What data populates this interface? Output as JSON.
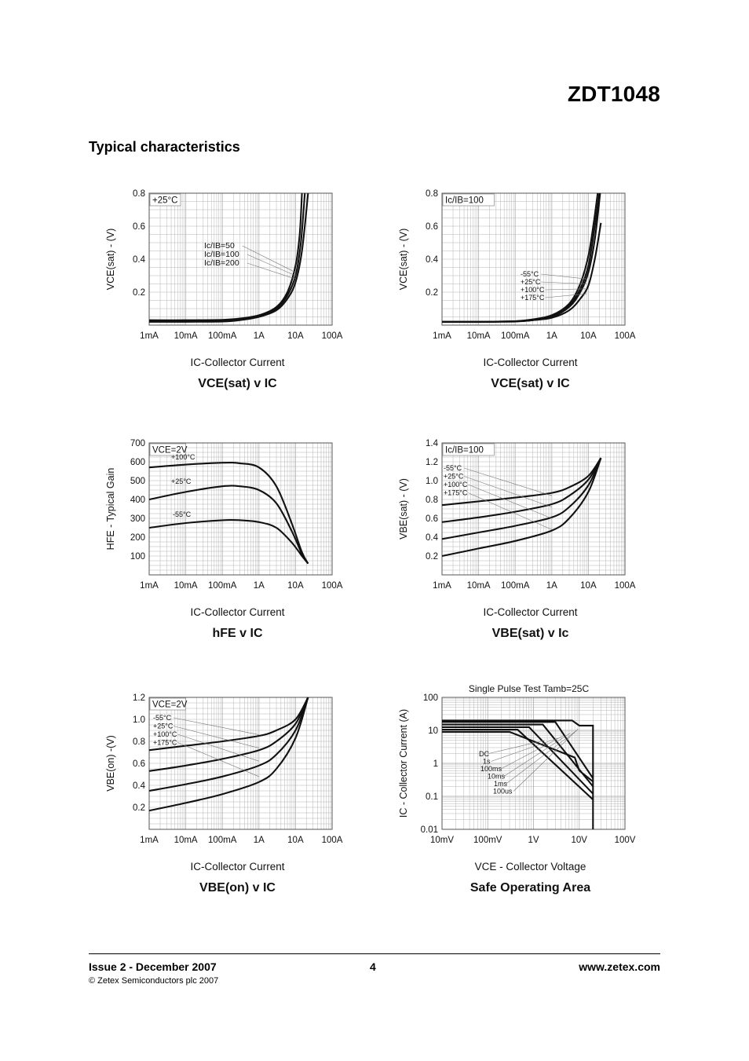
{
  "header": {
    "part_number": "ZDT1048"
  },
  "section_title": "Typical characteristics",
  "footer": {
    "issue": "Issue 2 - December 2007",
    "page": "4",
    "website": "www.zetex.com",
    "copyright": "© Zetex Semiconductors plc 2007"
  },
  "chart_data": [
    {
      "type": "line",
      "title": "VCE(sat) v IC",
      "xlabel": "IC-Collector Current",
      "ylabel": "VCE(sat) - (V)",
      "x_scale": "log",
      "x_range": [
        0.001,
        100
      ],
      "xticks": [
        0.001,
        0.01,
        0.1,
        1,
        10,
        100
      ],
      "xtick_labels": [
        "1mA",
        "10mA",
        "100mA",
        "1A",
        "10A",
        "100A"
      ],
      "y_range": [
        0,
        0.8
      ],
      "yticks": [
        0.2,
        0.4,
        0.6,
        0.8
      ],
      "ytick_labels": [
        "0.2",
        "0.4",
        "0.6",
        "0.8"
      ],
      "condition": "+25°C",
      "legend_labels": [
        "Ic/IB=50",
        "Ic/IB=100",
        "Ic/IB=200"
      ],
      "series": [
        {
          "name": "Ic/IB=50",
          "points": [
            [
              0.001,
              0.03
            ],
            [
              0.01,
              0.03
            ],
            [
              0.1,
              0.032
            ],
            [
              0.3,
              0.04
            ],
            [
              1,
              0.06
            ],
            [
              3,
              0.11
            ],
            [
              6,
              0.2
            ],
            [
              10,
              0.36
            ],
            [
              13,
              0.55
            ],
            [
              15,
              0.8
            ]
          ]
        },
        {
          "name": "Ic/IB=100",
          "points": [
            [
              0.001,
              0.025
            ],
            [
              0.01,
              0.025
            ],
            [
              0.1,
              0.027
            ],
            [
              0.3,
              0.035
            ],
            [
              1,
              0.055
            ],
            [
              3,
              0.1
            ],
            [
              6,
              0.18
            ],
            [
              10,
              0.3
            ],
            [
              14,
              0.5
            ],
            [
              18,
              0.8
            ]
          ]
        },
        {
          "name": "Ic/IB=200",
          "points": [
            [
              0.001,
              0.02
            ],
            [
              0.01,
              0.02
            ],
            [
              0.1,
              0.022
            ],
            [
              0.3,
              0.03
            ],
            [
              1,
              0.05
            ],
            [
              3,
              0.09
            ],
            [
              6,
              0.16
            ],
            [
              10,
              0.26
            ],
            [
              15,
              0.45
            ],
            [
              22,
              0.8
            ]
          ]
        }
      ]
    },
    {
      "type": "line",
      "title": "VCE(sat) v IC",
      "xlabel": "IC-Collector Current",
      "ylabel": "VCE(sat) - (V)",
      "x_scale": "log",
      "x_range": [
        0.001,
        100
      ],
      "xticks": [
        0.001,
        0.01,
        0.1,
        1,
        10,
        100
      ],
      "xtick_labels": [
        "1mA",
        "10mA",
        "100mA",
        "1A",
        "10A",
        "100A"
      ],
      "y_range": [
        0,
        0.8
      ],
      "yticks": [
        0.2,
        0.4,
        0.6,
        0.8
      ],
      "ytick_labels": [
        "0.2",
        "0.4",
        "0.6",
        "0.8"
      ],
      "condition": "Ic/IB=100",
      "legend_labels": [
        "-55°C",
        "+25°C",
        "+100°C",
        "+175°C"
      ],
      "series": [
        {
          "name": "-55°C",
          "points": [
            [
              0.001,
              0.02
            ],
            [
              0.01,
              0.02
            ],
            [
              0.1,
              0.024
            ],
            [
              0.3,
              0.035
            ],
            [
              1,
              0.06
            ],
            [
              3,
              0.13
            ],
            [
              6,
              0.25
            ],
            [
              10,
              0.42
            ],
            [
              14,
              0.62
            ],
            [
              18,
              0.8
            ]
          ]
        },
        {
          "name": "+25°C",
          "points": [
            [
              0.001,
              0.02
            ],
            [
              0.01,
              0.02
            ],
            [
              0.1,
              0.024
            ],
            [
              0.3,
              0.03
            ],
            [
              1,
              0.055
            ],
            [
              3,
              0.12
            ],
            [
              6,
              0.22
            ],
            [
              10,
              0.36
            ],
            [
              15,
              0.6
            ],
            [
              20,
              0.8
            ]
          ]
        },
        {
          "name": "+100°C",
          "points": [
            [
              0.001,
              0.02
            ],
            [
              0.01,
              0.02
            ],
            [
              0.1,
              0.023
            ],
            [
              0.3,
              0.03
            ],
            [
              1,
              0.05
            ],
            [
              3,
              0.11
            ],
            [
              6,
              0.2
            ],
            [
              10,
              0.32
            ],
            [
              15,
              0.52
            ],
            [
              21,
              0.8
            ]
          ]
        },
        {
          "name": "+175°C",
          "points": [
            [
              0.001,
              0.02
            ],
            [
              0.01,
              0.02
            ],
            [
              0.1,
              0.022
            ],
            [
              0.3,
              0.03
            ],
            [
              1,
              0.045
            ],
            [
              3,
              0.09
            ],
            [
              6,
              0.16
            ],
            [
              10,
              0.24
            ],
            [
              15,
              0.4
            ],
            [
              22,
              0.62
            ]
          ]
        }
      ]
    },
    {
      "type": "line",
      "title": "hFE v IC",
      "xlabel": "IC-Collector Current",
      "ylabel": "HFE - Typical Gain",
      "x_scale": "log",
      "x_range": [
        0.001,
        100
      ],
      "xticks": [
        0.001,
        0.01,
        0.1,
        1,
        10,
        100
      ],
      "xtick_labels": [
        "1mA",
        "10mA",
        "100mA",
        "1A",
        "10A",
        "100A"
      ],
      "y_range": [
        0,
        700
      ],
      "yticks": [
        100,
        200,
        300,
        400,
        500,
        600,
        700
      ],
      "ytick_labels": [
        "100",
        "200",
        "300",
        "400",
        "500",
        "600",
        "700"
      ],
      "condition": "VCE=2V",
      "series": [
        {
          "name": "+100°C",
          "points": [
            [
              0.001,
              570
            ],
            [
              0.01,
              585
            ],
            [
              0.1,
              595
            ],
            [
              0.3,
              592
            ],
            [
              1,
              570
            ],
            [
              3,
              470
            ],
            [
              8,
              270
            ],
            [
              15,
              120
            ],
            [
              22,
              60
            ]
          ]
        },
        {
          "name": "+25°C",
          "points": [
            [
              0.001,
              400
            ],
            [
              0.01,
              440
            ],
            [
              0.1,
              470
            ],
            [
              0.3,
              470
            ],
            [
              1,
              450
            ],
            [
              3,
              380
            ],
            [
              8,
              230
            ],
            [
              15,
              110
            ],
            [
              22,
              60
            ]
          ]
        },
        {
          "name": "-55°C",
          "points": [
            [
              0.001,
              250
            ],
            [
              0.01,
              275
            ],
            [
              0.1,
              290
            ],
            [
              0.3,
              290
            ],
            [
              1,
              280
            ],
            [
              3,
              250
            ],
            [
              8,
              170
            ],
            [
              15,
              100
            ],
            [
              22,
              60
            ]
          ]
        }
      ]
    },
    {
      "type": "line",
      "title": "VBE(sat) v Ic",
      "xlabel": "IC-Collector Current",
      "ylabel": "VBE(sat) - (V)",
      "x_scale": "log",
      "x_range": [
        0.001,
        100
      ],
      "xticks": [
        0.001,
        0.01,
        0.1,
        1,
        10,
        100
      ],
      "xtick_labels": [
        "1mA",
        "10mA",
        "100mA",
        "1A",
        "10A",
        "100A"
      ],
      "y_range": [
        0,
        1.4
      ],
      "yticks": [
        0.2,
        0.4,
        0.6,
        0.8,
        1.0,
        1.2,
        1.4
      ],
      "ytick_labels": [
        "0.2",
        "0.4",
        "0.6",
        "0.8",
        "1.0",
        "1.2",
        "1.4"
      ],
      "condition": "Ic/IB=100",
      "legend_labels": [
        "-55°C",
        "+25°C",
        "+100°C",
        "+175°C"
      ],
      "series": [
        {
          "name": "-55°C",
          "points": [
            [
              0.001,
              0.74
            ],
            [
              0.01,
              0.78
            ],
            [
              0.1,
              0.82
            ],
            [
              1,
              0.87
            ],
            [
              3,
              0.93
            ],
            [
              10,
              1.05
            ],
            [
              22,
              1.24
            ]
          ]
        },
        {
          "name": "+25°C",
          "points": [
            [
              0.001,
              0.56
            ],
            [
              0.01,
              0.61
            ],
            [
              0.1,
              0.67
            ],
            [
              1,
              0.75
            ],
            [
              3,
              0.84
            ],
            [
              10,
              1.01
            ],
            [
              22,
              1.24
            ]
          ]
        },
        {
          "name": "+100°C",
          "points": [
            [
              0.001,
              0.38
            ],
            [
              0.01,
              0.45
            ],
            [
              0.1,
              0.52
            ],
            [
              1,
              0.61
            ],
            [
              3,
              0.72
            ],
            [
              10,
              0.95
            ],
            [
              22,
              1.24
            ]
          ]
        },
        {
          "name": "+175°C",
          "points": [
            [
              0.001,
              0.2
            ],
            [
              0.01,
              0.28
            ],
            [
              0.1,
              0.36
            ],
            [
              1,
              0.47
            ],
            [
              3,
              0.6
            ],
            [
              10,
              0.88
            ],
            [
              22,
              1.24
            ]
          ]
        }
      ]
    },
    {
      "type": "line",
      "title": "VBE(on) v IC",
      "xlabel": "IC-Collector Current",
      "ylabel": "VBE(on) -(V)",
      "x_scale": "log",
      "x_range": [
        0.001,
        100
      ],
      "xticks": [
        0.001,
        0.01,
        0.1,
        1,
        10,
        100
      ],
      "xtick_labels": [
        "1mA",
        "10mA",
        "100mA",
        "1A",
        "10A",
        "100A"
      ],
      "y_range": [
        0,
        1.2
      ],
      "yticks": [
        0.2,
        0.4,
        0.6,
        0.8,
        1.0,
        1.2
      ],
      "ytick_labels": [
        "0.2",
        "0.4",
        "0.6",
        "0.8",
        "1.0",
        "1.2"
      ],
      "condition": "VCE=2V",
      "legend_labels": [
        "-55°C",
        "+25°C",
        "+100°C",
        "+175°C"
      ],
      "series": [
        {
          "name": "-55°C",
          "points": [
            [
              0.001,
              0.72
            ],
            [
              0.01,
              0.76
            ],
            [
              0.1,
              0.8
            ],
            [
              1,
              0.85
            ],
            [
              3,
              0.9
            ],
            [
              10,
              1.0
            ],
            [
              22,
              1.2
            ]
          ]
        },
        {
          "name": "+25°C",
          "points": [
            [
              0.001,
              0.53
            ],
            [
              0.01,
              0.58
            ],
            [
              0.1,
              0.64
            ],
            [
              1,
              0.72
            ],
            [
              3,
              0.8
            ],
            [
              10,
              0.96
            ],
            [
              22,
              1.2
            ]
          ]
        },
        {
          "name": "+100°C",
          "points": [
            [
              0.001,
              0.35
            ],
            [
              0.01,
              0.41
            ],
            [
              0.1,
              0.48
            ],
            [
              1,
              0.58
            ],
            [
              3,
              0.68
            ],
            [
              10,
              0.9
            ],
            [
              22,
              1.2
            ]
          ]
        },
        {
          "name": "+175°C",
          "points": [
            [
              0.001,
              0.17
            ],
            [
              0.01,
              0.24
            ],
            [
              0.1,
              0.32
            ],
            [
              1,
              0.43
            ],
            [
              3,
              0.55
            ],
            [
              10,
              0.83
            ],
            [
              22,
              1.2
            ]
          ]
        }
      ]
    },
    {
      "type": "line",
      "title": "Safe Operating Area",
      "subtitle": "Single Pulse Test Tamb=25C",
      "xlabel": "VCE - Collector Voltage",
      "ylabel": "IC - Collector Current (A)",
      "x_scale": "log",
      "y_scale": "log",
      "x_range": [
        0.01,
        100
      ],
      "xticks": [
        0.01,
        0.1,
        1,
        10,
        100
      ],
      "xtick_labels": [
        "10mV",
        "100mV",
        "1V",
        "10V",
        "100V"
      ],
      "y_range": [
        0.01,
        100
      ],
      "yticks": [
        0.01,
        0.1,
        1,
        10,
        100
      ],
      "ytick_labels": [
        "0.01",
        "0.1",
        "1",
        "10",
        "100"
      ],
      "legend_labels": [
        "DC",
        "1s",
        "100ms",
        "10ms",
        "1ms",
        "100us"
      ],
      "series": [
        {
          "name": "100us",
          "points": [
            [
              0.01,
              20
            ],
            [
              7,
              20
            ],
            [
              10,
              14
            ],
            [
              20,
              14
            ],
            [
              20,
              0.01
            ]
          ]
        },
        {
          "name": "1ms",
          "points": [
            [
              0.01,
              18
            ],
            [
              3,
              18
            ],
            [
              20,
              0.35
            ]
          ]
        },
        {
          "name": "10ms",
          "points": [
            [
              0.01,
              15
            ],
            [
              1.6,
              15
            ],
            [
              20,
              0.2
            ]
          ]
        },
        {
          "name": "100ms",
          "points": [
            [
              0.01,
              12.5
            ],
            [
              0.8,
              12.5
            ],
            [
              20,
              0.12
            ]
          ]
        },
        {
          "name": "1s",
          "points": [
            [
              0.01,
              10.5
            ],
            [
              0.45,
              10.5
            ],
            [
              20,
              0.08
            ]
          ]
        },
        {
          "name": "DC",
          "points": [
            [
              0.01,
              9
            ],
            [
              0.3,
              9
            ],
            [
              8,
              1.5
            ],
            [
              10,
              0.6
            ],
            [
              20,
              0.28
            ]
          ]
        }
      ]
    }
  ]
}
